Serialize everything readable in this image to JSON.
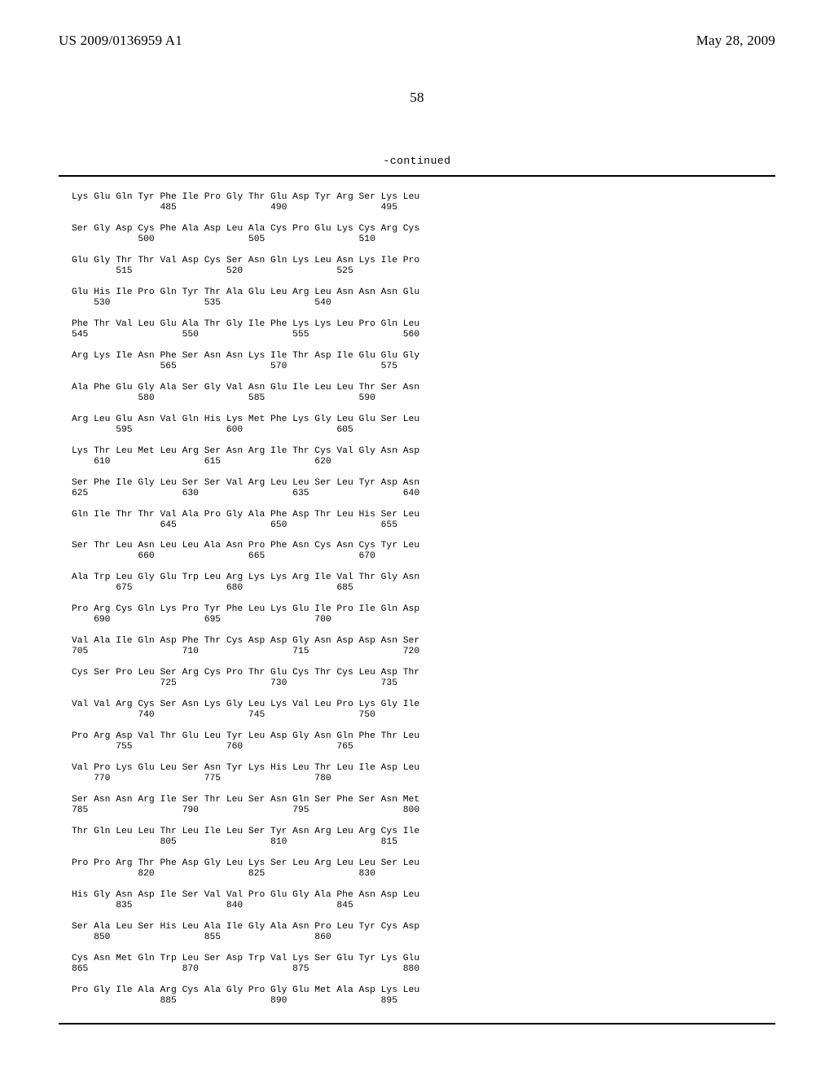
{
  "header": {
    "patent_number": "US 2009/0136959 A1",
    "pub_date": "May 28, 2009",
    "page_number": "58"
  },
  "labels": {
    "continued": "-continued"
  },
  "sequence": {
    "start": 481,
    "blocks": [
      [
        "Lys",
        "Glu",
        "Gln",
        "Tyr",
        "Phe",
        "Ile",
        "Pro",
        "Gly",
        "Thr",
        "Glu",
        "Asp",
        "Tyr",
        "Arg",
        "Ser",
        "Lys",
        "Leu"
      ],
      [
        "Ser",
        "Gly",
        "Asp",
        "Cys",
        "Phe",
        "Ala",
        "Asp",
        "Leu",
        "Ala",
        "Cys",
        "Pro",
        "Glu",
        "Lys",
        "Cys",
        "Arg",
        "Cys"
      ],
      [
        "Glu",
        "Gly",
        "Thr",
        "Thr",
        "Val",
        "Asp",
        "Cys",
        "Ser",
        "Asn",
        "Gln",
        "Lys",
        "Leu",
        "Asn",
        "Lys",
        "Ile",
        "Pro"
      ],
      [
        "Glu",
        "His",
        "Ile",
        "Pro",
        "Gln",
        "Tyr",
        "Thr",
        "Ala",
        "Glu",
        "Leu",
        "Arg",
        "Leu",
        "Asn",
        "Asn",
        "Asn",
        "Glu"
      ],
      [
        "Phe",
        "Thr",
        "Val",
        "Leu",
        "Glu",
        "Ala",
        "Thr",
        "Gly",
        "Ile",
        "Phe",
        "Lys",
        "Lys",
        "Leu",
        "Pro",
        "Gln",
        "Leu"
      ],
      [
        "Arg",
        "Lys",
        "Ile",
        "Asn",
        "Phe",
        "Ser",
        "Asn",
        "Asn",
        "Lys",
        "Ile",
        "Thr",
        "Asp",
        "Ile",
        "Glu",
        "Glu",
        "Gly"
      ],
      [
        "Ala",
        "Phe",
        "Glu",
        "Gly",
        "Ala",
        "Ser",
        "Gly",
        "Val",
        "Asn",
        "Glu",
        "Ile",
        "Leu",
        "Leu",
        "Thr",
        "Ser",
        "Asn"
      ],
      [
        "Arg",
        "Leu",
        "Glu",
        "Asn",
        "Val",
        "Gln",
        "His",
        "Lys",
        "Met",
        "Phe",
        "Lys",
        "Gly",
        "Leu",
        "Glu",
        "Ser",
        "Leu"
      ],
      [
        "Lys",
        "Thr",
        "Leu",
        "Met",
        "Leu",
        "Arg",
        "Ser",
        "Asn",
        "Arg",
        "Ile",
        "Thr",
        "Cys",
        "Val",
        "Gly",
        "Asn",
        "Asp"
      ],
      [
        "Ser",
        "Phe",
        "Ile",
        "Gly",
        "Leu",
        "Ser",
        "Ser",
        "Val",
        "Arg",
        "Leu",
        "Leu",
        "Ser",
        "Leu",
        "Tyr",
        "Asp",
        "Asn"
      ],
      [
        "Gln",
        "Ile",
        "Thr",
        "Thr",
        "Val",
        "Ala",
        "Pro",
        "Gly",
        "Ala",
        "Phe",
        "Asp",
        "Thr",
        "Leu",
        "His",
        "Ser",
        "Leu"
      ],
      [
        "Ser",
        "Thr",
        "Leu",
        "Asn",
        "Leu",
        "Leu",
        "Ala",
        "Asn",
        "Pro",
        "Phe",
        "Asn",
        "Cys",
        "Asn",
        "Cys",
        "Tyr",
        "Leu"
      ],
      [
        "Ala",
        "Trp",
        "Leu",
        "Gly",
        "Glu",
        "Trp",
        "Leu",
        "Arg",
        "Lys",
        "Lys",
        "Arg",
        "Ile",
        "Val",
        "Thr",
        "Gly",
        "Asn"
      ],
      [
        "Pro",
        "Arg",
        "Cys",
        "Gln",
        "Lys",
        "Pro",
        "Tyr",
        "Phe",
        "Leu",
        "Lys",
        "Glu",
        "Ile",
        "Pro",
        "Ile",
        "Gln",
        "Asp"
      ],
      [
        "Val",
        "Ala",
        "Ile",
        "Gln",
        "Asp",
        "Phe",
        "Thr",
        "Cys",
        "Asp",
        "Asp",
        "Gly",
        "Asn",
        "Asp",
        "Asp",
        "Asn",
        "Ser"
      ],
      [
        "Cys",
        "Ser",
        "Pro",
        "Leu",
        "Ser",
        "Arg",
        "Cys",
        "Pro",
        "Thr",
        "Glu",
        "Cys",
        "Thr",
        "Cys",
        "Leu",
        "Asp",
        "Thr"
      ],
      [
        "Val",
        "Val",
        "Arg",
        "Cys",
        "Ser",
        "Asn",
        "Lys",
        "Gly",
        "Leu",
        "Lys",
        "Val",
        "Leu",
        "Pro",
        "Lys",
        "Gly",
        "Ile"
      ],
      [
        "Pro",
        "Arg",
        "Asp",
        "Val",
        "Thr",
        "Glu",
        "Leu",
        "Tyr",
        "Leu",
        "Asp",
        "Gly",
        "Asn",
        "Gln",
        "Phe",
        "Thr",
        "Leu"
      ],
      [
        "Val",
        "Pro",
        "Lys",
        "Glu",
        "Leu",
        "Ser",
        "Asn",
        "Tyr",
        "Lys",
        "His",
        "Leu",
        "Thr",
        "Leu",
        "Ile",
        "Asp",
        "Leu"
      ],
      [
        "Ser",
        "Asn",
        "Asn",
        "Arg",
        "Ile",
        "Ser",
        "Thr",
        "Leu",
        "Ser",
        "Asn",
        "Gln",
        "Ser",
        "Phe",
        "Ser",
        "Asn",
        "Met"
      ],
      [
        "Thr",
        "Gln",
        "Leu",
        "Leu",
        "Thr",
        "Leu",
        "Ile",
        "Leu",
        "Ser",
        "Tyr",
        "Asn",
        "Arg",
        "Leu",
        "Arg",
        "Cys",
        "Ile"
      ],
      [
        "Pro",
        "Pro",
        "Arg",
        "Thr",
        "Phe",
        "Asp",
        "Gly",
        "Leu",
        "Lys",
        "Ser",
        "Leu",
        "Arg",
        "Leu",
        "Leu",
        "Ser",
        "Leu"
      ],
      [
        "His",
        "Gly",
        "Asn",
        "Asp",
        "Ile",
        "Ser",
        "Val",
        "Val",
        "Pro",
        "Glu",
        "Gly",
        "Ala",
        "Phe",
        "Asn",
        "Asp",
        "Leu"
      ],
      [
        "Ser",
        "Ala",
        "Leu",
        "Ser",
        "His",
        "Leu",
        "Ala",
        "Ile",
        "Gly",
        "Ala",
        "Asn",
        "Pro",
        "Leu",
        "Tyr",
        "Cys",
        "Asp"
      ],
      [
        "Cys",
        "Asn",
        "Met",
        "Gln",
        "Trp",
        "Leu",
        "Ser",
        "Asp",
        "Trp",
        "Val",
        "Lys",
        "Ser",
        "Glu",
        "Tyr",
        "Lys",
        "Glu"
      ],
      [
        "Pro",
        "Gly",
        "Ile",
        "Ala",
        "Arg",
        "Cys",
        "Ala",
        "Gly",
        "Pro",
        "Gly",
        "Glu",
        "Met",
        "Ala",
        "Asp",
        "Lys",
        "Leu"
      ]
    ]
  }
}
